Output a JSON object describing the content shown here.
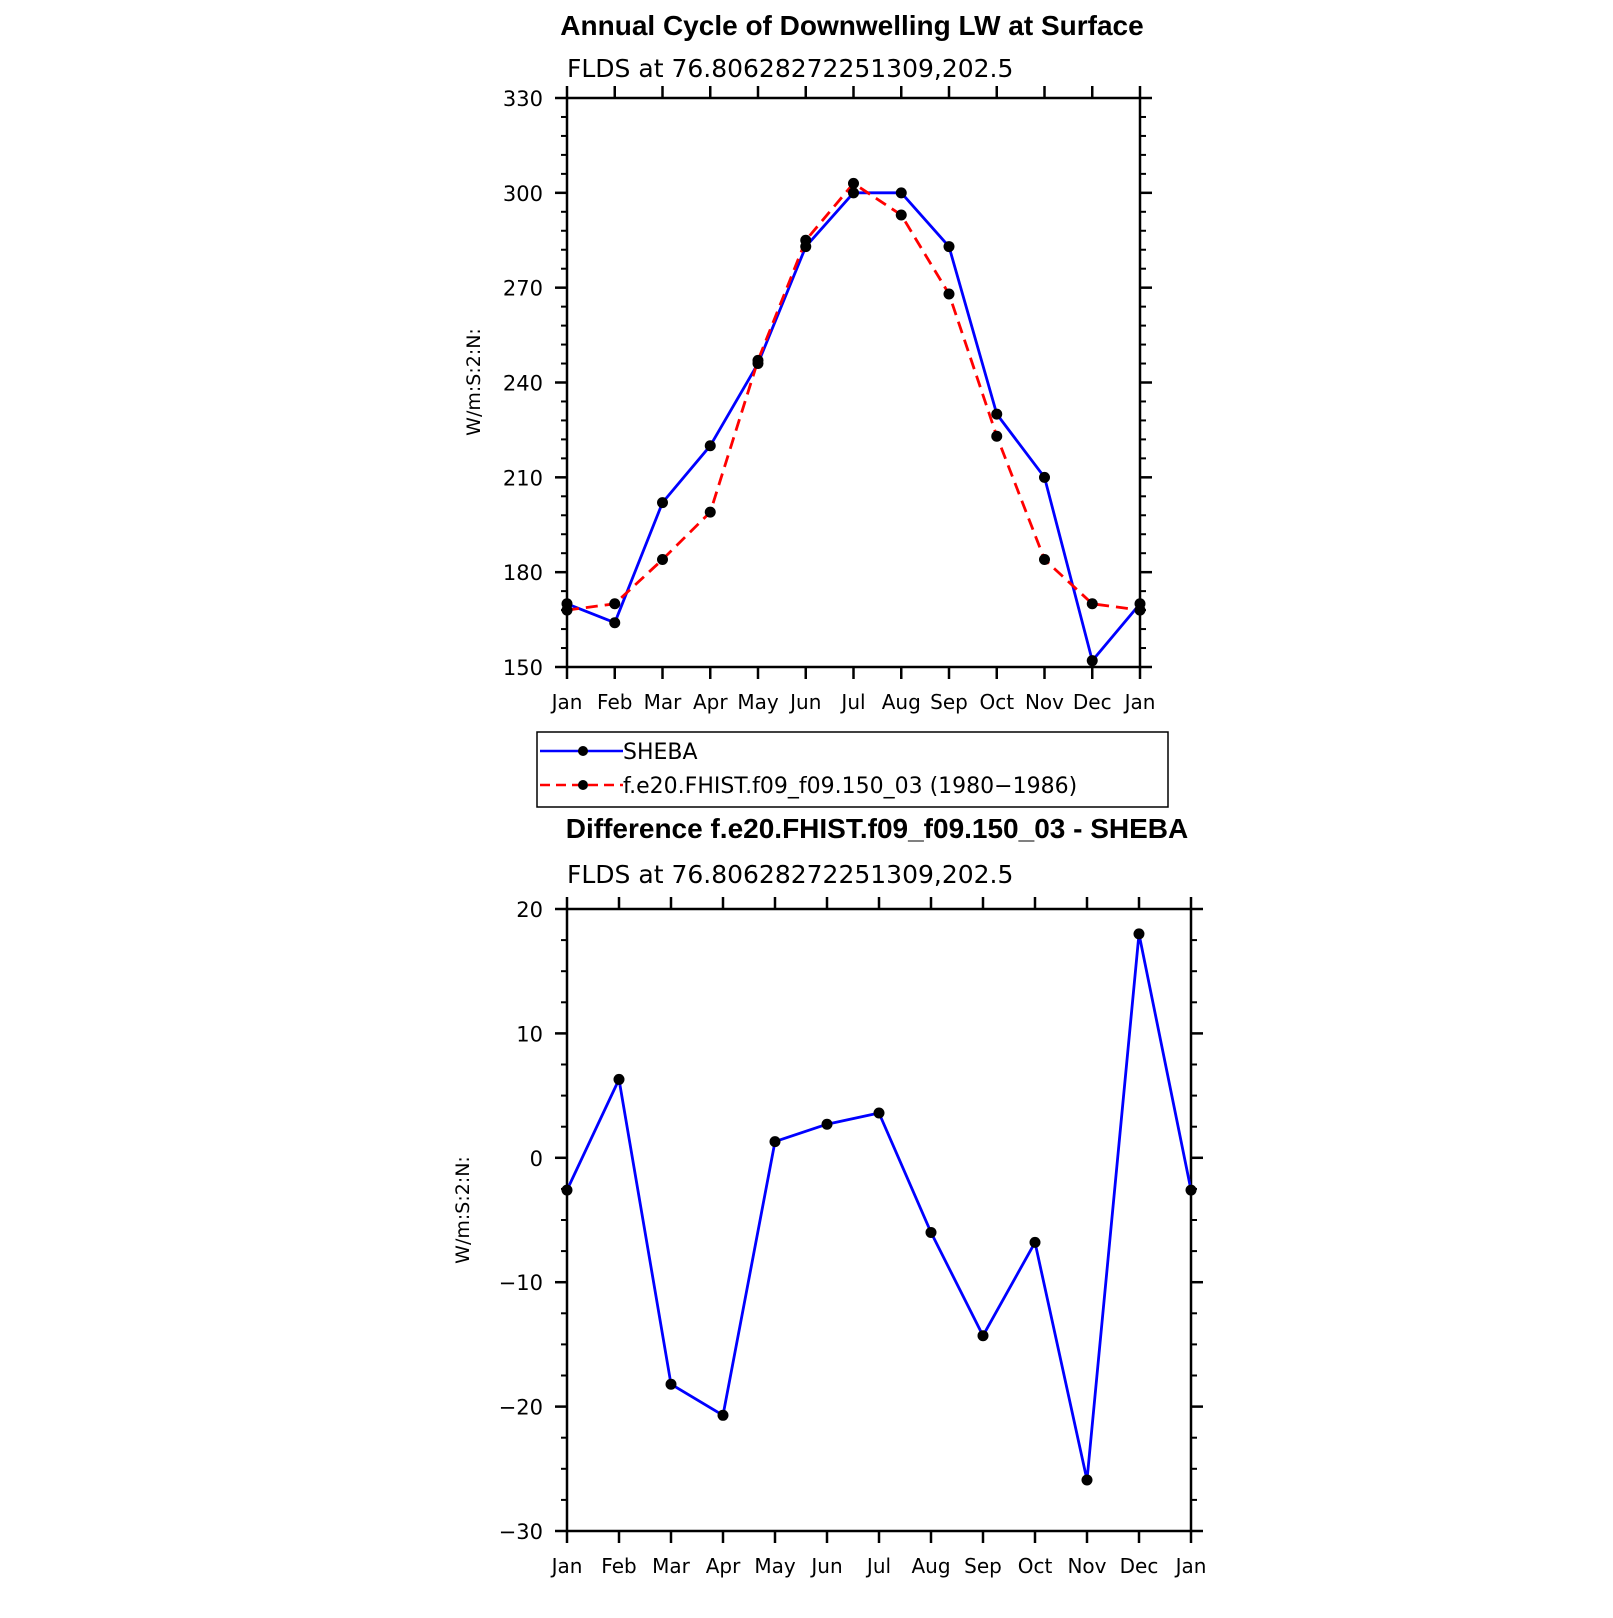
{
  "chart_data": [
    {
      "type": "line",
      "title": "Annual Cycle of Downwelling LW at Surface",
      "subtitle": "FLDS at 76.80628272251309,202.5",
      "xlabel": "",
      "ylabel": "W/m:S:2:N:",
      "categories": [
        "Jan",
        "Feb",
        "Mar",
        "Apr",
        "May",
        "Jun",
        "Jul",
        "Aug",
        "Sep",
        "Oct",
        "Nov",
        "Dec",
        "Jan"
      ],
      "ylim": [
        150,
        330
      ],
      "yticks": [
        150,
        180,
        210,
        240,
        270,
        300,
        330
      ],
      "series": [
        {
          "name": "SHEBA",
          "color": "#0000ff",
          "dash": "solid",
          "values": [
            170,
            164,
            202,
            220,
            246,
            283,
            300,
            300,
            283,
            230,
            210,
            152,
            170
          ]
        },
        {
          "name": "f.e20.FHIST.f09_f09.150_03 (1980−1986)",
          "color": "#ff0000",
          "dash": "dashed",
          "values": [
            168,
            170,
            184,
            199,
            247,
            285,
            303,
            293,
            268,
            223,
            184,
            170,
            168
          ]
        }
      ],
      "legend": "below"
    },
    {
      "type": "line",
      "title": "Difference f.e20.FHIST.f09_f09.150_03 - SHEBA",
      "subtitle": "FLDS at 76.80628272251309,202.5",
      "xlabel": "",
      "ylabel": "W/m:S:2:N:",
      "categories": [
        "Jan",
        "Feb",
        "Mar",
        "Apr",
        "May",
        "Jun",
        "Jul",
        "Aug",
        "Sep",
        "Oct",
        "Nov",
        "Dec",
        "Jan"
      ],
      "ylim": [
        -30,
        20
      ],
      "yticks": [
        -30,
        -20,
        -10,
        0,
        10,
        20
      ],
      "ytick_labels": [
        "−30",
        "−20",
        "−10",
        "0",
        "10",
        "20"
      ],
      "series": [
        {
          "name": "",
          "color": "#0000ff",
          "dash": "solid",
          "values": [
            -2.6,
            6.3,
            -18.2,
            -20.7,
            1.3,
            2.7,
            3.6,
            -6.0,
            -14.3,
            -6.8,
            -25.9,
            18.0,
            -2.6
          ]
        }
      ]
    }
  ]
}
